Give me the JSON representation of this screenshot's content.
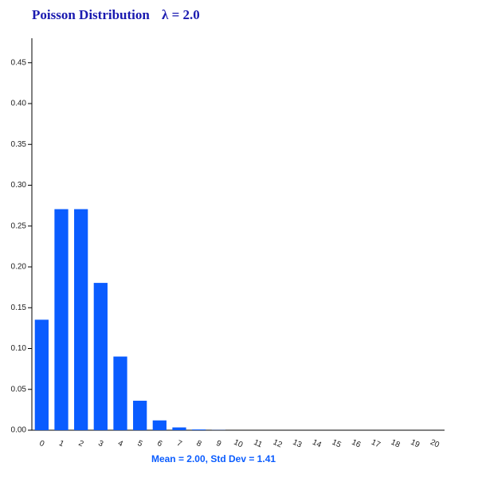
{
  "chart_data": {
    "type": "bar",
    "title": "Poisson Distribution",
    "parameter_label": "λ = 2.0",
    "x_label": "Mean = 2.00, Std Dev = 1.41",
    "categories": [
      "0",
      "1",
      "2",
      "3",
      "4",
      "5",
      "6",
      "7",
      "8",
      "9",
      "10",
      "11",
      "12",
      "13",
      "14",
      "15",
      "16",
      "17",
      "18",
      "19",
      "20"
    ],
    "values": [
      0.1353,
      0.2707,
      0.2707,
      0.1804,
      0.0902,
      0.0361,
      0.012,
      0.0034,
      0.0009,
      0.0002,
      0,
      0,
      0,
      0,
      0,
      0,
      0,
      0,
      0,
      0,
      0
    ],
    "color": "#0a5cff",
    "ylim": [
      0,
      0.48
    ],
    "yticks": [
      {
        "value": 0,
        "label": "0.00"
      },
      {
        "value": 0.05,
        "label": "0.05"
      },
      {
        "value": 0.1,
        "label": "0.10"
      },
      {
        "value": 0.15,
        "label": "0.15"
      },
      {
        "value": 0.2,
        "label": "0.20"
      },
      {
        "value": 0.25,
        "label": "0.25"
      },
      {
        "value": 0.3,
        "label": "0.30"
      },
      {
        "value": 0.35,
        "label": "0.35"
      },
      {
        "value": 0.4,
        "label": "0.40"
      },
      {
        "value": 0.45,
        "label": "0.45"
      }
    ],
    "grid": false
  }
}
